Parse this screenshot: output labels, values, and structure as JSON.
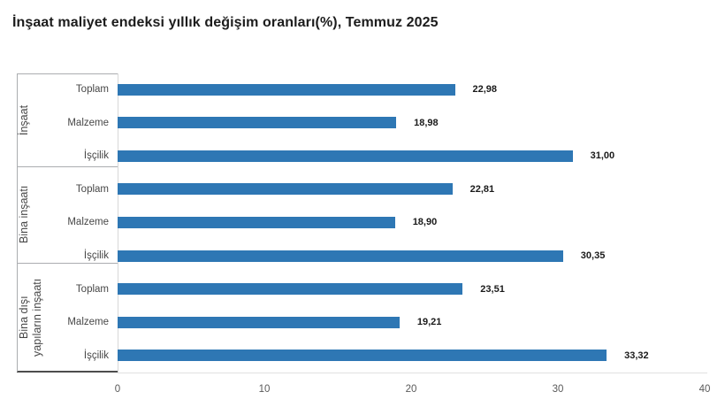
{
  "title": "İnşaat maliyet endeksi yıllık değişim oranları(%), Temmuz 2025",
  "chart_data": {
    "type": "bar",
    "orientation": "horizontal",
    "title": "İnşaat maliyet endeksi yıllık değişim oranları(%), Temmuz 2025",
    "xlabel": "",
    "ylabel": "",
    "xlim": [
      0,
      40
    ],
    "x_ticks": [
      0,
      10,
      20,
      30,
      40
    ],
    "grid": false,
    "legend": false,
    "bar_color": "#2e77b4",
    "decimal_separator": ",",
    "groups": [
      {
        "label": "İnşaat",
        "rows": [
          {
            "label": "Toplam",
            "value": 22.98,
            "display": "22,98"
          },
          {
            "label": "Malzeme",
            "value": 18.98,
            "display": "18,98"
          },
          {
            "label": "İşçilik",
            "value": 31.0,
            "display": "31,00"
          }
        ]
      },
      {
        "label": "Bina inşaatı",
        "rows": [
          {
            "label": "Toplam",
            "value": 22.81,
            "display": "22,81"
          },
          {
            "label": "Malzeme",
            "value": 18.9,
            "display": "18,90"
          },
          {
            "label": "İşçilik",
            "value": 30.35,
            "display": "30,35"
          }
        ]
      },
      {
        "label": "Bina dışı\nyapıların inşaatı",
        "rows": [
          {
            "label": "Toplam",
            "value": 23.51,
            "display": "23,51"
          },
          {
            "label": "Malzeme",
            "value": 19.21,
            "display": "19,21"
          },
          {
            "label": "İşçilik",
            "value": 33.32,
            "display": "33,32"
          }
        ]
      }
    ]
  }
}
